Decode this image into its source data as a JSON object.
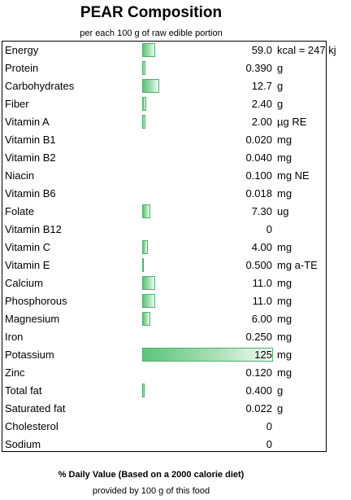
{
  "chart_data": {
    "type": "bar",
    "title": "PEAR Composition",
    "subtitle": "per each 100 g of raw edible portion",
    "footer_title": "% Daily Value (Based on a 2000 calorie diet)",
    "footer_subtitle": "provided by 100 g of this food",
    "bar_color": "#5cc47a",
    "rows": [
      {
        "label": "Energy",
        "value": "59.0",
        "unit": "kcal = 247 kj",
        "pct_dv": 3
      },
      {
        "label": "Protein",
        "value": "0.390",
        "unit": "g",
        "pct_dv": 0.8
      },
      {
        "label": "Carbohydrates",
        "value": "12.7",
        "unit": "g",
        "pct_dv": 4
      },
      {
        "label": "Fiber",
        "value": "2.40",
        "unit": "g",
        "pct_dv": 1
      },
      {
        "label": "Vitamin A",
        "value": "2.00",
        "unit": "µg RE",
        "pct_dv": 0.8
      },
      {
        "label": "Vitamin B1",
        "value": "0.020",
        "unit": "mg",
        "pct_dv": 0
      },
      {
        "label": "Vitamin B2",
        "value": "0.040",
        "unit": "mg",
        "pct_dv": 0
      },
      {
        "label": "Niacin",
        "value": "0.100",
        "unit": "mg NE",
        "pct_dv": 0
      },
      {
        "label": "Vitamin B6",
        "value": "0.018",
        "unit": "mg",
        "pct_dv": 0
      },
      {
        "label": "Folate",
        "value": "7.30",
        "unit": "ug",
        "pct_dv": 2
      },
      {
        "label": "Vitamin B12",
        "value": "0",
        "unit": "",
        "pct_dv": 0
      },
      {
        "label": "Vitamin C",
        "value": "4.00",
        "unit": "mg",
        "pct_dv": 1.3
      },
      {
        "label": "Vitamin E",
        "value": "0.500",
        "unit": "mg a-TE",
        "pct_dv": 0.3
      },
      {
        "label": "Calcium",
        "value": "11.0",
        "unit": "mg",
        "pct_dv": 3
      },
      {
        "label": "Phosphorous",
        "value": "11.0",
        "unit": "mg",
        "pct_dv": 3
      },
      {
        "label": "Magnesium",
        "value": "6.00",
        "unit": "mg",
        "pct_dv": 2
      },
      {
        "label": "Iron",
        "value": "0.250",
        "unit": "mg",
        "pct_dv": 0
      },
      {
        "label": "Potassium",
        "value": "125",
        "unit": "mg",
        "pct_dv": 31
      },
      {
        "label": "Zinc",
        "value": "0.120",
        "unit": "mg",
        "pct_dv": 0
      },
      {
        "label": "Total fat",
        "value": "0.400",
        "unit": "g",
        "pct_dv": 0.5
      },
      {
        "label": "Saturated fat",
        "value": "0.022",
        "unit": "g",
        "pct_dv": 0
      },
      {
        "label": "Cholesterol",
        "value": "0",
        "unit": "",
        "pct_dv": 0
      },
      {
        "label": "Sodium",
        "value": "0",
        "unit": "",
        "pct_dv": 0
      }
    ]
  }
}
